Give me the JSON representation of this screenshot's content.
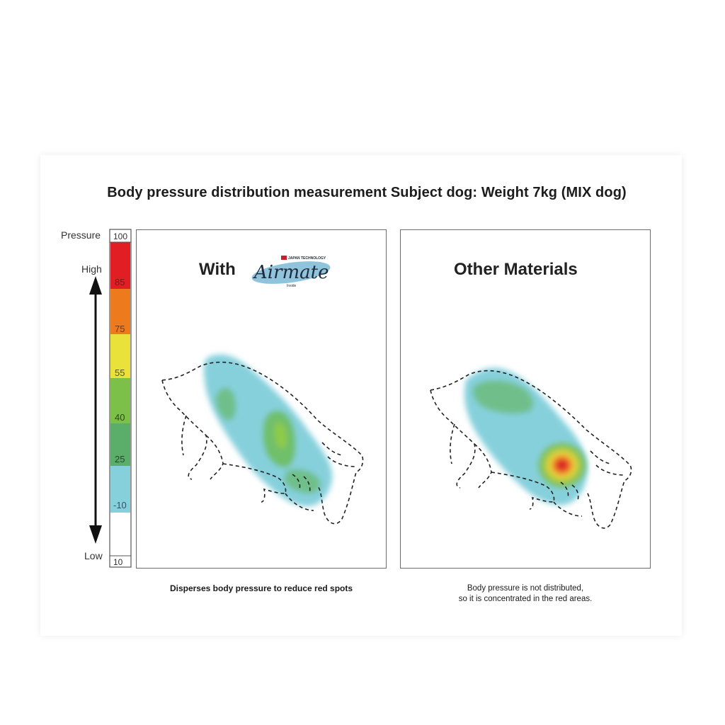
{
  "title": "Body pressure distribution measurement Subject dog: Weight 7kg (MIX dog)",
  "scale": {
    "label": "Pressure",
    "high_label": "High",
    "low_label": "Low",
    "ticks": [
      "100",
      "85",
      "75",
      "55",
      "40",
      "25",
      "-10",
      "10"
    ],
    "colors": [
      "#e01e24",
      "#ee7a1e",
      "#e8e23a",
      "#7cc04a",
      "#5aae6a",
      "#86d0dc",
      "#ffffff"
    ]
  },
  "left_panel": {
    "heading": "With",
    "logo_text": "Airmate",
    "logo_badge": "JAPAN TECHNOLOGY",
    "logo_sub": "Inside",
    "caption": "Disperses body pressure to reduce red spots"
  },
  "right_panel": {
    "heading": "Other Materials",
    "caption_line1": "Body pressure is not distributed,",
    "caption_line2": "so it is concentrated in the red areas."
  }
}
